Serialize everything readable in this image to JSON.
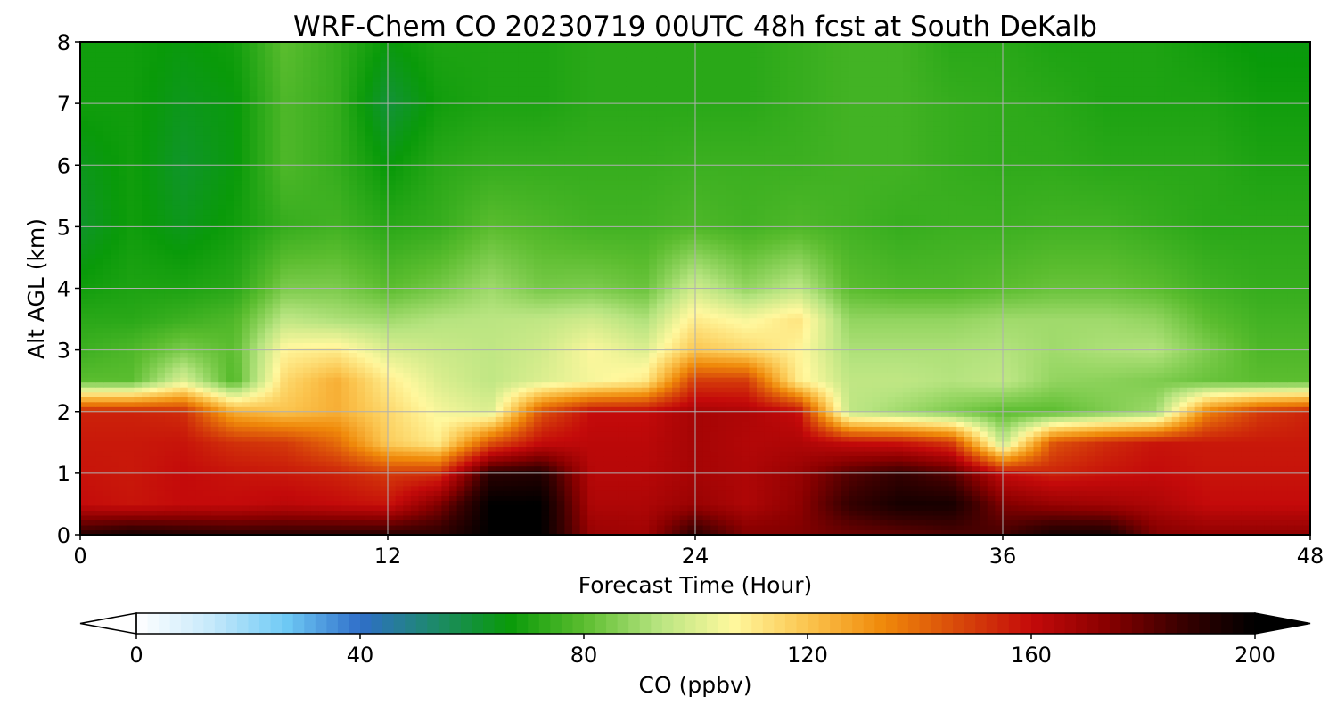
{
  "chart_data": {
    "type": "heatmap",
    "title": "WRF-Chem CO  20230719 00UTC 48h fcst at South DeKalb",
    "xlabel": "Forecast Time (Hour)",
    "ylabel": "Alt AGL (km)",
    "xlim": [
      0,
      48
    ],
    "ylim": [
      0,
      8
    ],
    "x_ticks": [
      0,
      12,
      24,
      36,
      48
    ],
    "y_ticks": [
      0,
      1,
      2,
      3,
      4,
      5,
      6,
      7,
      8
    ],
    "grid": true,
    "z_label": "CO  (ppbv)",
    "colorbar": {
      "label": "CO  (ppbv)",
      "ticks": [
        0,
        40,
        80,
        120,
        160,
        200
      ],
      "range": [
        0,
        200
      ],
      "extend": "both",
      "placement": "bottom",
      "colors": [
        "#ffffff",
        "#c6e9fb",
        "#6fcaf5",
        "#2f6ec9",
        "#1d8a6a",
        "#099a09",
        "#5bbd2f",
        "#b7e480",
        "#fff89e",
        "#fbc44e",
        "#f08a0a",
        "#d94a0a",
        "#c40a0a",
        "#8a0000",
        "#3a0000",
        "#000000"
      ]
    },
    "x": [
      0,
      2,
      4,
      6,
      8,
      10,
      12,
      14,
      16,
      18,
      20,
      22,
      24,
      26,
      28,
      30,
      32,
      34,
      36,
      38,
      40,
      42,
      44,
      46,
      48
    ],
    "y": [
      0,
      0.5,
      1,
      1.5,
      2,
      2.5,
      3,
      3.5,
      4,
      5,
      6,
      7,
      8
    ],
    "z": [
      [
        190,
        195,
        192,
        190,
        190,
        190,
        190,
        190,
        200,
        200,
        170,
        168,
        190,
        175,
        175,
        178,
        180,
        183,
        185,
        195,
        195,
        175,
        172,
        172,
        172
      ],
      [
        160,
        158,
        160,
        160,
        162,
        160,
        158,
        175,
        200,
        200,
        165,
        165,
        170,
        165,
        172,
        188,
        195,
        195,
        175,
        170,
        168,
        165,
        160,
        160,
        160
      ],
      [
        158,
        157,
        160,
        158,
        157,
        155,
        150,
        152,
        190,
        192,
        163,
        163,
        167,
        165,
        170,
        182,
        188,
        182,
        160,
        155,
        158,
        160,
        158,
        158,
        158
      ],
      [
        157,
        157,
        158,
        152,
        150,
        140,
        118,
        110,
        145,
        160,
        162,
        162,
        167,
        164,
        165,
        160,
        158,
        150,
        95,
        145,
        153,
        158,
        157,
        157,
        157
      ],
      [
        155,
        155,
        153,
        125,
        120,
        125,
        115,
        105,
        100,
        145,
        160,
        160,
        167,
        165,
        160,
        95,
        90,
        85,
        80,
        80,
        85,
        90,
        135,
        150,
        155
      ],
      [
        80,
        80,
        100,
        78,
        115,
        125,
        110,
        100,
        95,
        100,
        105,
        110,
        150,
        150,
        110,
        95,
        95,
        93,
        95,
        88,
        87,
        85,
        82,
        80,
        80
      ],
      [
        75,
        78,
        85,
        80,
        108,
        110,
        100,
        97,
        95,
        98,
        106,
        100,
        120,
        115,
        108,
        92,
        92,
        92,
        93,
        90,
        92,
        93,
        85,
        78,
        78
      ],
      [
        72,
        72,
        75,
        78,
        95,
        92,
        90,
        93,
        94,
        95,
        98,
        92,
        110,
        105,
        112,
        88,
        88,
        88,
        90,
        90,
        90,
        88,
        80,
        76,
        76
      ],
      [
        68,
        70,
        70,
        72,
        85,
        85,
        80,
        84,
        90,
        84,
        85,
        82,
        98,
        88,
        95,
        80,
        78,
        78,
        80,
        82,
        82,
        80,
        76,
        74,
        74
      ],
      [
        62,
        68,
        64,
        68,
        74,
        76,
        72,
        74,
        80,
        78,
        76,
        76,
        78,
        76,
        78,
        76,
        74,
        75,
        75,
        76,
        76,
        74,
        72,
        72,
        72
      ],
      [
        64,
        68,
        62,
        66,
        78,
        74,
        66,
        72,
        74,
        74,
        74,
        74,
        75,
        75,
        75,
        76,
        76,
        74,
        73,
        73,
        72,
        72,
        72,
        70,
        70
      ],
      [
        68,
        68,
        64,
        66,
        78,
        74,
        60,
        68,
        70,
        70,
        72,
        72,
        72,
        72,
        74,
        76,
        76,
        74,
        73,
        72,
        70,
        70,
        70,
        68,
        68
      ],
      [
        68,
        68,
        66,
        68,
        80,
        74,
        66,
        70,
        70,
        70,
        72,
        72,
        72,
        72,
        74,
        76,
        76,
        72,
        72,
        70,
        70,
        70,
        68,
        66,
        66
      ]
    ]
  }
}
